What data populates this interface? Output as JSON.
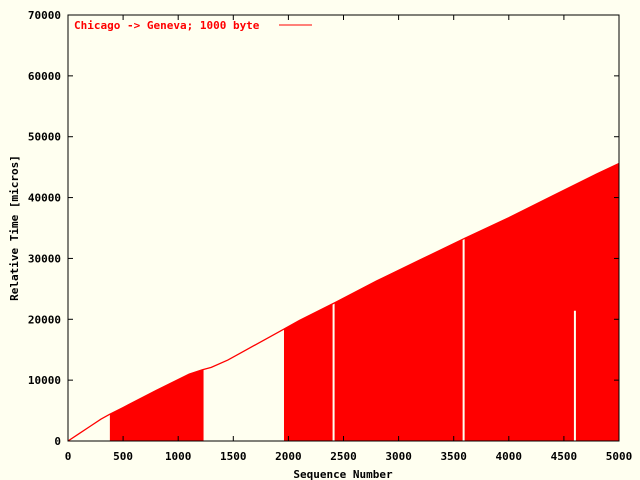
{
  "chart_data": {
    "type": "line",
    "title": "",
    "xlabel": "Sequence Number",
    "ylabel": "Relative Time [micros]",
    "xlim": [
      0,
      5000
    ],
    "ylim": [
      0,
      70000
    ],
    "xticks": [
      0,
      500,
      1000,
      1500,
      2000,
      2500,
      3000,
      3500,
      4000,
      4500,
      5000
    ],
    "yticks": [
      0,
      10000,
      20000,
      30000,
      40000,
      50000,
      60000,
      70000
    ],
    "legend_position": "top-left",
    "colors": {
      "series": "#ff0000",
      "background": "#fffff0",
      "axes": "#000000"
    },
    "series": [
      {
        "name": "Chicago -> Geneva; 1000 byte",
        "line": {
          "x": [
            0,
            100,
            200,
            300,
            380,
            500,
            800,
            1100,
            1220,
            1300,
            1450,
            1600,
            1800,
            1960,
            2100,
            2430,
            2800,
            3200,
            3600,
            4000,
            4400,
            4800,
            5000
          ],
          "y": [
            0,
            1200,
            2400,
            3600,
            4400,
            5500,
            8300,
            11000,
            11700,
            12100,
            13300,
            14800,
            16800,
            18400,
            19800,
            22800,
            26300,
            29800,
            33300,
            36700,
            40300,
            43900,
            45600
          ]
        },
        "filled_spans": [
          {
            "x": [
              380,
              500,
              800,
              1100,
              1230
            ],
            "y": [
              4400,
              5500,
              8300,
              11000,
              11700
            ]
          },
          {
            "x": [
              1960,
              2100,
              2430,
              2800,
              3200,
              3600,
              4000,
              4400,
              4800,
              5000
            ],
            "y": [
              18400,
              19800,
              22800,
              26300,
              29800,
              33300,
              36700,
              40300,
              43900,
              45600
            ]
          }
        ],
        "gaps": [
          {
            "x": 2410,
            "y": 22600
          },
          {
            "x": 3590,
            "y": 33200
          },
          {
            "x": 4600,
            "y": 21400
          }
        ]
      }
    ]
  }
}
